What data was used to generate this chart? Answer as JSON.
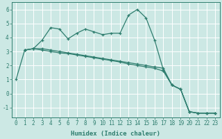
{
  "xlabel": "Humidex (Indice chaleur)",
  "bg_color": "#cce8e4",
  "grid_color": "#ffffff",
  "line_color": "#2e7d6e",
  "xlim": [
    -0.5,
    23.5
  ],
  "ylim": [
    -1.7,
    6.5
  ],
  "yticks": [
    -1,
    0,
    1,
    2,
    3,
    4,
    5,
    6
  ],
  "xticks": [
    0,
    1,
    2,
    3,
    4,
    5,
    6,
    7,
    8,
    9,
    10,
    11,
    12,
    13,
    14,
    15,
    16,
    17,
    18,
    19,
    20,
    21,
    22,
    23
  ],
  "line1_x": [
    0,
    1,
    2,
    3,
    4,
    5,
    6,
    7,
    8,
    9,
    10,
    11,
    12,
    13,
    14,
    15,
    16,
    17,
    18,
    19,
    20,
    21,
    22,
    23
  ],
  "line1_y": [
    1.0,
    3.1,
    3.2,
    3.8,
    4.7,
    4.6,
    3.9,
    4.3,
    4.6,
    4.4,
    4.2,
    4.3,
    4.3,
    5.6,
    6.0,
    5.4,
    3.8,
    1.7,
    0.6,
    0.3,
    -1.3,
    -1.4,
    -1.4,
    -1.4
  ],
  "line2_x": [
    1,
    2,
    3,
    4,
    5,
    6,
    7,
    8,
    9,
    10,
    11,
    12,
    13,
    14,
    15,
    16,
    17,
    18,
    19,
    20,
    21,
    22,
    23
  ],
  "line2_y": [
    3.1,
    3.2,
    3.1,
    3.0,
    2.9,
    2.85,
    2.75,
    2.65,
    2.55,
    2.45,
    2.35,
    2.25,
    2.1,
    2.0,
    1.9,
    1.8,
    1.6,
    0.6,
    0.3,
    -1.3,
    -1.4,
    -1.4,
    -1.4
  ],
  "line3_x": [
    1,
    2,
    3,
    4,
    5,
    6,
    7,
    8,
    9,
    10,
    11,
    12,
    13,
    14,
    15,
    16,
    17,
    18,
    19,
    20,
    21,
    22,
    23
  ],
  "line3_y": [
    3.1,
    3.2,
    3.2,
    3.1,
    3.0,
    2.9,
    2.8,
    2.7,
    2.6,
    2.5,
    2.4,
    2.3,
    2.2,
    2.1,
    2.0,
    1.9,
    1.8,
    0.6,
    0.3,
    -1.3,
    -1.4,
    -1.4,
    -1.4
  ],
  "xlabel_fontsize": 6.5,
  "tick_fontsize": 5.5
}
